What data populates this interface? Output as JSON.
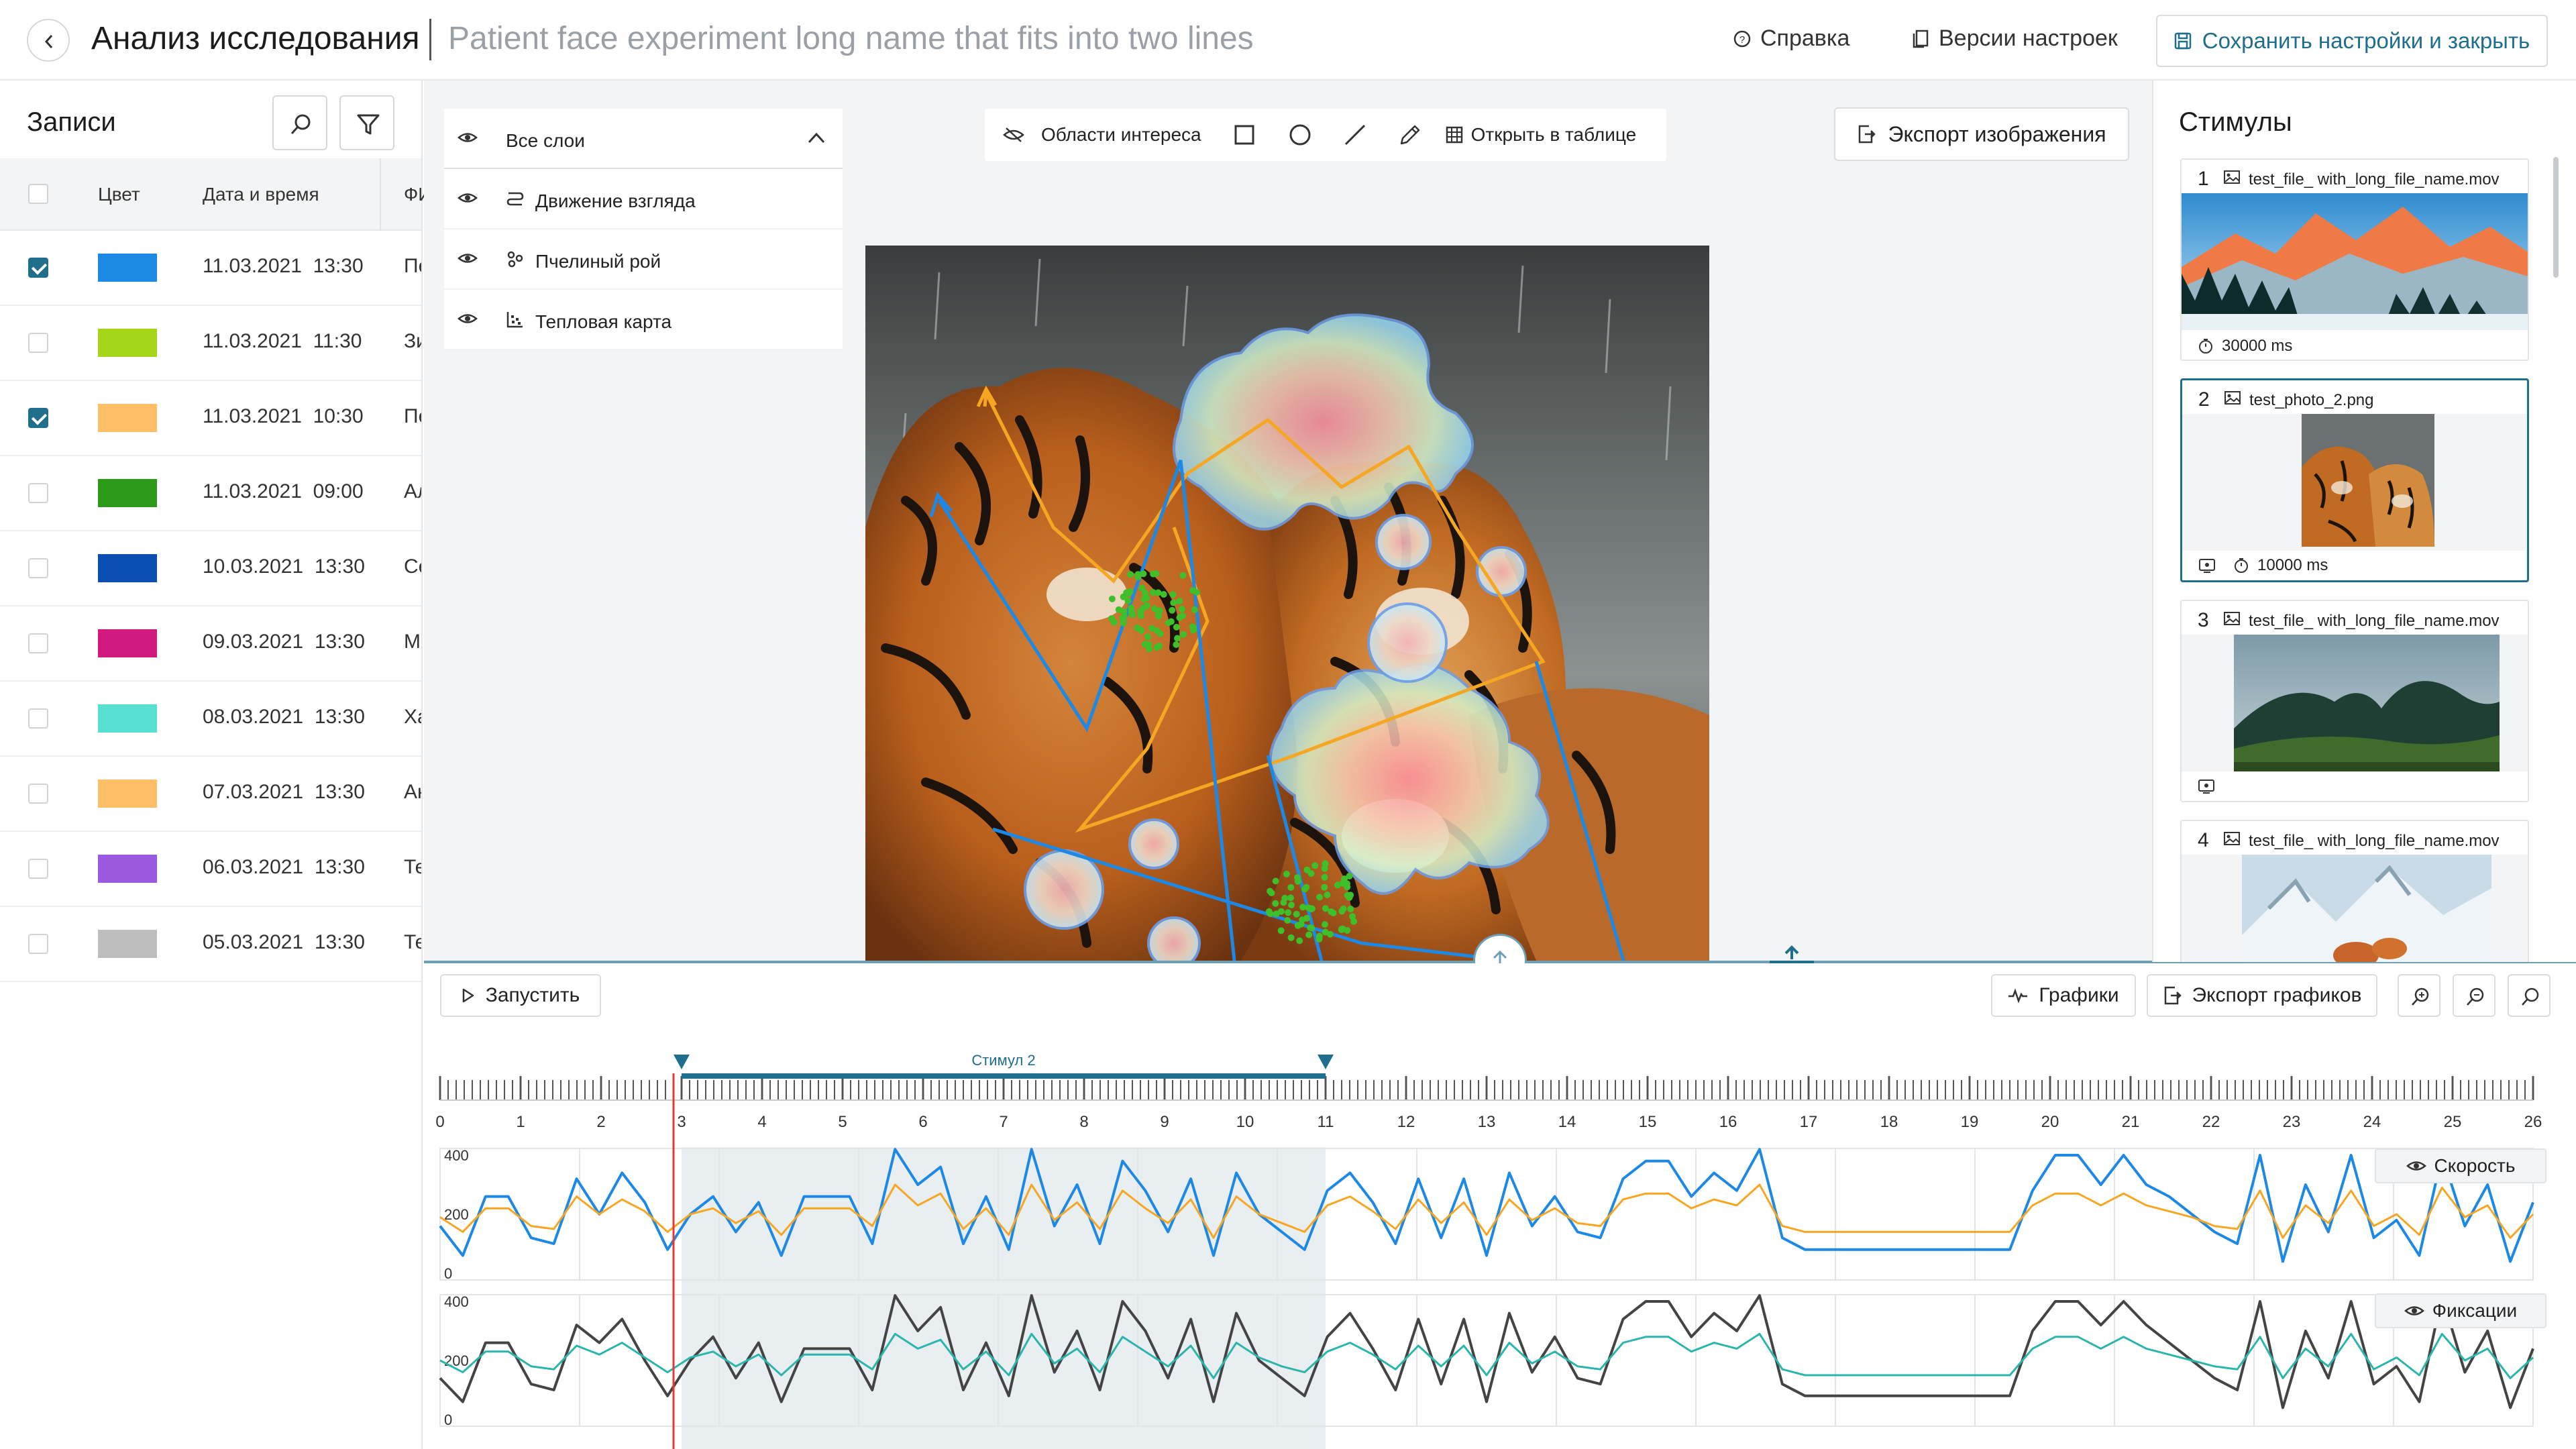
{
  "header": {
    "app_title": "Анализ исследования",
    "study_name": "Patient face experiment long name that fits into two lines",
    "help_label": "Справка",
    "versions_label": "Версии настроек",
    "save_label": "Сохранить настройки и закрыть"
  },
  "records": {
    "title": "Записи",
    "columns": {
      "color": "Цвет",
      "datetime": "Дата и время",
      "name": "ФИ"
    },
    "rows": [
      {
        "checked": true,
        "color": "#1e88e5",
        "datetime": "11.03.2021  13:30",
        "name": "Пе"
      },
      {
        "checked": false,
        "color": "#a5d61a",
        "datetime": "11.03.2021  11:30",
        "name": "Зи"
      },
      {
        "checked": true,
        "color": "#ffbf69",
        "datetime": "11.03.2021  10:30",
        "name": "Пе"
      },
      {
        "checked": false,
        "color": "#2e9a1a",
        "datetime": "11.03.2021  09:00",
        "name": "Ал"
      },
      {
        "checked": false,
        "color": "#0b4fb3",
        "datetime": "10.03.2021  13:30",
        "name": "Се"
      },
      {
        "checked": false,
        "color": "#d01a7f",
        "datetime": "09.03.2021  13:30",
        "name": "Ма"
      },
      {
        "checked": false,
        "color": "#57e0d2",
        "datetime": "08.03.2021  13:30",
        "name": "Ха"
      },
      {
        "checked": false,
        "color": "#ffbf69",
        "datetime": "07.03.2021  13:30",
        "name": "Ан"
      },
      {
        "checked": false,
        "color": "#9b59e0",
        "datetime": "06.03.2021  13:30",
        "name": "Те"
      },
      {
        "checked": false,
        "color": "#bdbdbd",
        "datetime": "05.03.2021  13:30",
        "name": "Те"
      }
    ]
  },
  "layers": {
    "all": "Все слои",
    "items": [
      {
        "label": "Движение взгляда",
        "icon": "gaze-path-icon"
      },
      {
        "label": "Пчелиный рой",
        "icon": "bee-swarm-icon"
      },
      {
        "label": "Тепловая карта",
        "icon": "heatmap-icon"
      }
    ]
  },
  "toolbar": {
    "roi_label": "Области интереса",
    "open_table_label": "Открыть в таблице",
    "export_image_label": "Экспорт изображения"
  },
  "stimuli": {
    "title": "Стимулы",
    "items": [
      {
        "num": "1",
        "file": "test_file_ with_long_file_name.mov",
        "duration": "30000 ms",
        "selected": false
      },
      {
        "num": "2",
        "file": "test_photo_2.png",
        "duration": "10000 ms",
        "selected": true
      },
      {
        "num": "3",
        "file": "test_file_ with_long_file_name.mov",
        "duration": "",
        "selected": false
      },
      {
        "num": "4",
        "file": "test_file_ with_long_file_name.mov",
        "duration": "",
        "selected": false
      }
    ]
  },
  "controls": {
    "play_label": "Запустить",
    "charts_label": "Графики",
    "export_charts_label": "Экспорт графиков"
  },
  "timeline": {
    "ticks": [
      "0",
      "1",
      "2",
      "3",
      "4",
      "5",
      "6",
      "7",
      "8",
      "9",
      "10",
      "11",
      "12",
      "13",
      "14",
      "15",
      "16",
      "17",
      "18",
      "19",
      "20",
      "21",
      "22",
      "23",
      "24",
      "25",
      "26"
    ],
    "stimulus_label": "Стимул 2",
    "stimulus_range": [
      3,
      11
    ],
    "cursor": 2.9
  },
  "colors": {
    "accent": "#1f6e8c",
    "speed_a": "#1e88e5",
    "speed_b": "#f5a623",
    "fix_a": "#444444",
    "fix_b": "#2bb5ad",
    "cursor": "#e53935"
  },
  "chart_data": [
    {
      "type": "line",
      "legend": "Скорость",
      "yticks": [
        "400",
        "200",
        "0"
      ],
      "ylim": [
        0,
        400
      ],
      "xlim": [
        0,
        26
      ],
      "series": [
        {
          "values": [
            160,
            60,
            260,
            260,
            120,
            100,
            320,
            200,
            340,
            240,
            80,
            200,
            260,
            140,
            240,
            60,
            260,
            260,
            260,
            100,
            420,
            300,
            360,
            100,
            260,
            80,
            420,
            160,
            300,
            100,
            380,
            280,
            140,
            320,
            60,
            340,
            200,
            140,
            80,
            280,
            340,
            240,
            100,
            320,
            120,
            320,
            60,
            340,
            160,
            260,
            140,
            120,
            320,
            380,
            380,
            260,
            340,
            280,
            420,
            120,
            80,
            80,
            80,
            80,
            80,
            80,
            80,
            80,
            80,
            80,
            280,
            400,
            400,
            300,
            400,
            300,
            260,
            200,
            140,
            100,
            400,
            40,
            300,
            140,
            400,
            120,
            180,
            60,
            400,
            160,
            300,
            40,
            240
          ]
        },
        {
          "values": [
            190,
            140,
            220,
            220,
            160,
            150,
            260,
            200,
            250,
            210,
            140,
            200,
            220,
            170,
            210,
            130,
            220,
            220,
            220,
            160,
            300,
            230,
            270,
            150,
            220,
            130,
            300,
            180,
            240,
            150,
            280,
            220,
            170,
            250,
            120,
            260,
            200,
            170,
            140,
            230,
            260,
            210,
            150,
            250,
            170,
            240,
            130,
            250,
            180,
            220,
            170,
            160,
            250,
            270,
            270,
            220,
            250,
            230,
            300,
            160,
            140,
            140,
            140,
            140,
            140,
            140,
            140,
            140,
            140,
            140,
            230,
            270,
            270,
            230,
            270,
            230,
            210,
            190,
            160,
            150,
            280,
            120,
            230,
            170,
            280,
            160,
            200,
            130,
            290,
            190,
            230,
            120,
            200
          ]
        }
      ]
    },
    {
      "type": "line",
      "legend": "Фиксации",
      "yticks": [
        "400",
        "200",
        "0"
      ],
      "ylim": [
        0,
        400
      ],
      "xlim": [
        0,
        26
      ],
      "series": [
        {
          "values": [
            140,
            60,
            260,
            260,
            120,
            100,
            320,
            260,
            340,
            200,
            80,
            200,
            280,
            140,
            260,
            60,
            240,
            240,
            240,
            100,
            420,
            300,
            380,
            100,
            260,
            80,
            420,
            160,
            300,
            100,
            400,
            300,
            140,
            340,
            60,
            360,
            200,
            140,
            80,
            280,
            360,
            240,
            100,
            340,
            120,
            340,
            60,
            360,
            160,
            280,
            140,
            120,
            340,
            400,
            400,
            280,
            360,
            300,
            420,
            120,
            80,
            80,
            80,
            80,
            80,
            80,
            80,
            80,
            80,
            80,
            300,
            400,
            400,
            320,
            400,
            320,
            260,
            200,
            140,
            100,
            400,
            40,
            300,
            140,
            400,
            120,
            180,
            60,
            420,
            160,
            300,
            40,
            240
          ]
        },
        {
          "values": [
            200,
            160,
            230,
            230,
            180,
            170,
            250,
            220,
            260,
            210,
            160,
            210,
            230,
            180,
            220,
            150,
            220,
            220,
            220,
            170,
            290,
            240,
            270,
            170,
            230,
            150,
            290,
            190,
            240,
            160,
            280,
            230,
            180,
            250,
            140,
            260,
            210,
            180,
            160,
            230,
            260,
            220,
            170,
            250,
            180,
            250,
            150,
            260,
            190,
            230,
            180,
            170,
            260,
            280,
            280,
            230,
            260,
            240,
            290,
            170,
            150,
            150,
            150,
            150,
            150,
            150,
            150,
            150,
            150,
            150,
            240,
            280,
            280,
            240,
            280,
            240,
            220,
            200,
            180,
            170,
            280,
            140,
            240,
            180,
            290,
            170,
            210,
            150,
            290,
            200,
            240,
            140,
            210
          ]
        }
      ]
    }
  ]
}
